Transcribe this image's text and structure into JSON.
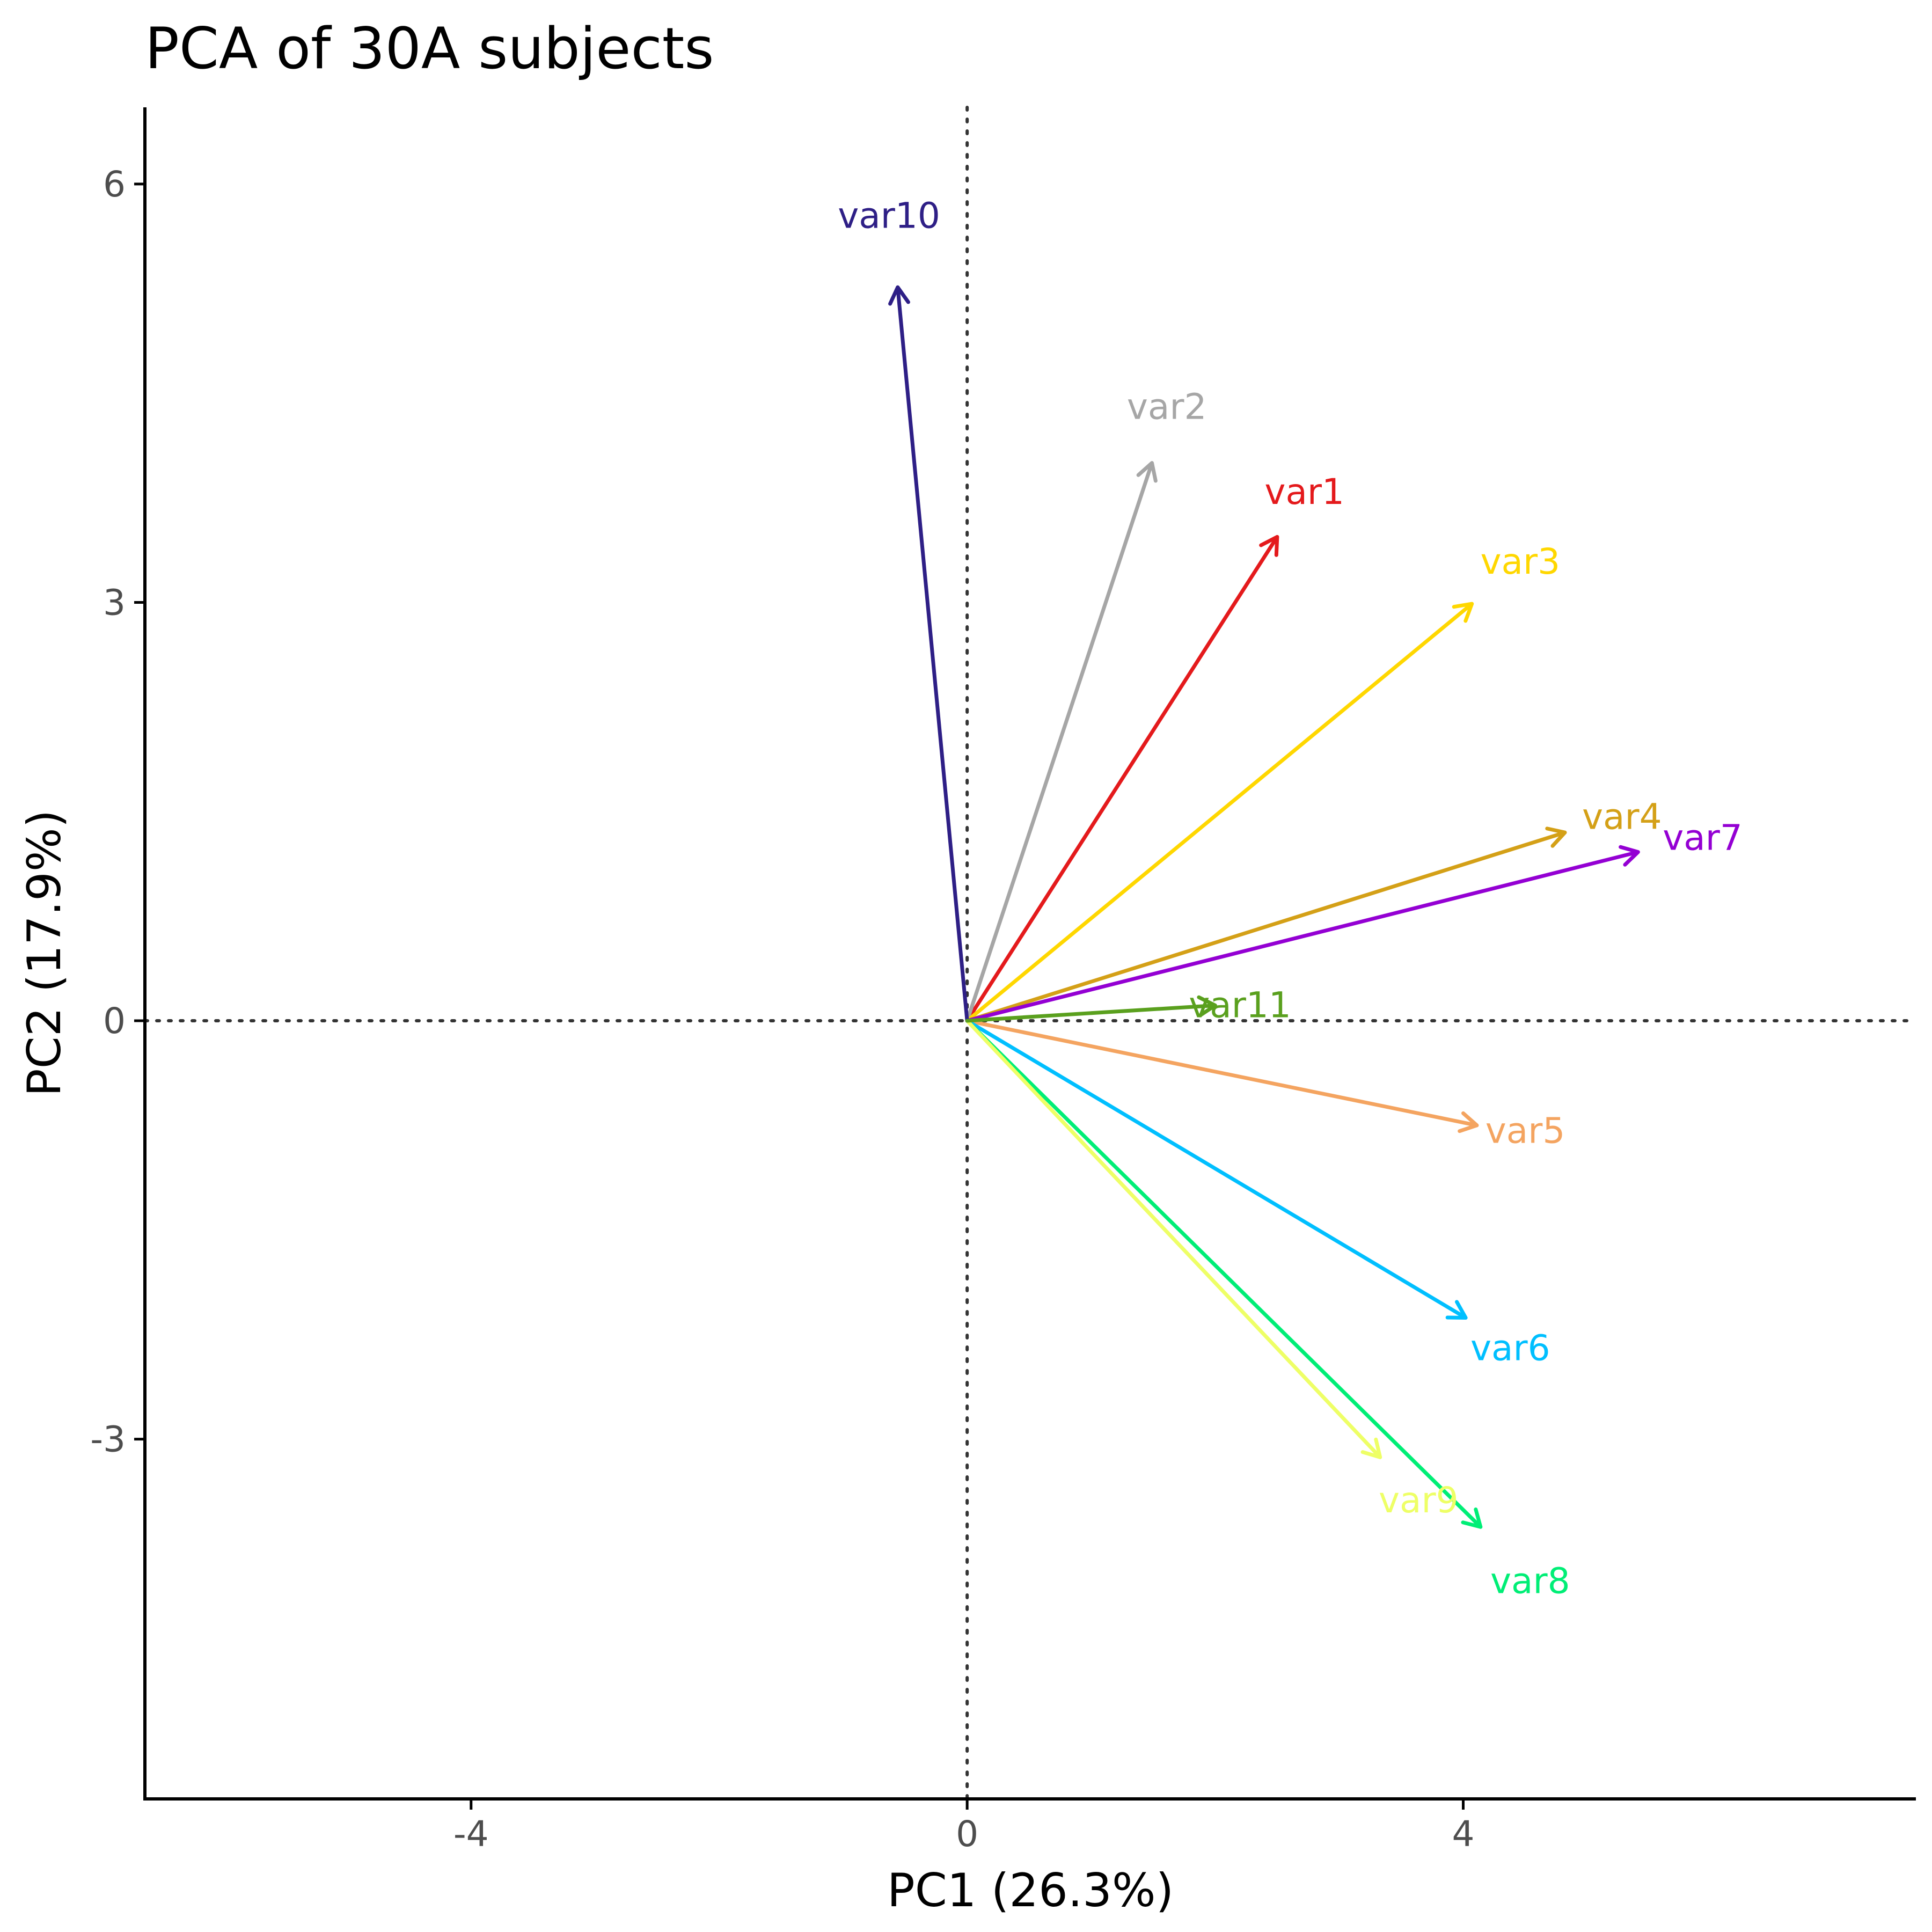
{
  "chart_data": {
    "type": "biplot",
    "title": "PCA of 30A subjects",
    "xlabel": "PC1 (26.3%)",
    "ylabel": "PC2 (17.9%)",
    "xlim": [
      -6.63,
      7.65
    ],
    "ylim": [
      -5.58,
      6.55
    ],
    "xticks": [
      -4,
      0,
      4
    ],
    "yticks": [
      -3,
      0,
      3,
      6
    ],
    "xtick_labels": [
      "-4",
      "0",
      "4"
    ],
    "ytick_labels": [
      "-3",
      "0",
      "3",
      "6"
    ],
    "reference_lines": {
      "x": 0,
      "y": 0
    },
    "grid": false,
    "vectors": [
      {
        "name": "var1",
        "x": 2.5,
        "y": 3.47,
        "color": "#e41a1c",
        "label_pos": [
          2.72,
          3.79
        ]
      },
      {
        "name": "var2",
        "x": 1.49,
        "y": 4.0,
        "color": "#a6a6a6",
        "label_pos": [
          1.61,
          4.4
        ]
      },
      {
        "name": "var3",
        "x": 4.07,
        "y": 2.99,
        "color": "#ffd700",
        "label_pos": [
          4.46,
          3.29
        ]
      },
      {
        "name": "var4",
        "x": 4.82,
        "y": 1.35,
        "color": "#d4a017",
        "label_pos": [
          5.28,
          1.46
        ]
      },
      {
        "name": "var5",
        "x": 4.11,
        "y": -0.75,
        "color": "#f4a460",
        "label_pos": [
          4.5,
          -0.79
        ]
      },
      {
        "name": "var6",
        "x": 4.02,
        "y": -2.13,
        "color": "#00bfff",
        "label_pos": [
          4.38,
          -2.35
        ]
      },
      {
        "name": "var7",
        "x": 5.41,
        "y": 1.21,
        "color": "#9400d3",
        "label_pos": [
          5.93,
          1.31
        ]
      },
      {
        "name": "var8",
        "x": 4.14,
        "y": -3.63,
        "color": "#00ee76",
        "label_pos": [
          4.54,
          -4.02
        ]
      },
      {
        "name": "var9",
        "x": 3.33,
        "y": -3.13,
        "color": "#eeff66",
        "label_pos": [
          3.64,
          -3.44
        ]
      },
      {
        "name": "var10",
        "x": -0.56,
        "y": 5.26,
        "color": "#2e1f86",
        "label_pos": [
          -0.63,
          5.77
        ]
      },
      {
        "name": "var11",
        "x": 2.0,
        "y": 0.11,
        "color": "#5aa01e",
        "label_pos": [
          2.2,
          0.11
        ]
      }
    ]
  }
}
